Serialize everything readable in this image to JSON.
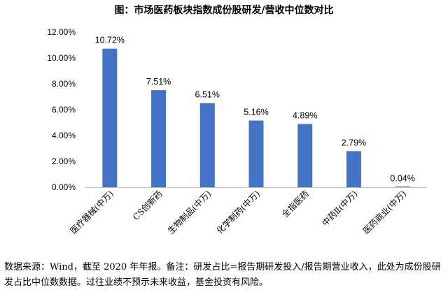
{
  "title": "图：市场医药板块指数成份股研发/营收中位数对比",
  "footnote": "数据来源：Wind，截至 2020 年年报。备注：研发占比=报告期研发投入/报告期营业收入，此处为成份股研发占比中位数数据。过往业绩不预示未来收益，基金投资有风险。",
  "colors": {
    "bar": "#4472C4",
    "axis": "#BFBFBF"
  },
  "chart_data": {
    "type": "bar",
    "title": "图：市场医药板块指数成份股研发/营收中位数对比",
    "categories": [
      "医疗器械(中万)",
      "CS创新药",
      "生物制品(中万)",
      "化学制药(中万)",
      "全指医药",
      "中药Ⅱ(中万)",
      "医药商业(中万)"
    ],
    "values": [
      10.72,
      7.51,
      6.51,
      5.16,
      4.89,
      2.79,
      0.04
    ],
    "value_labels": [
      "10.72%",
      "7.51%",
      "6.51%",
      "5.16%",
      "4.89%",
      "2.79%",
      "0.04%"
    ],
    "yticks": [
      "0.00%",
      "2.00%",
      "4.00%",
      "6.00%",
      "8.00%",
      "10.00%",
      "12.00%"
    ],
    "ylim": [
      0,
      12
    ],
    "grid": false,
    "legend": "none"
  }
}
